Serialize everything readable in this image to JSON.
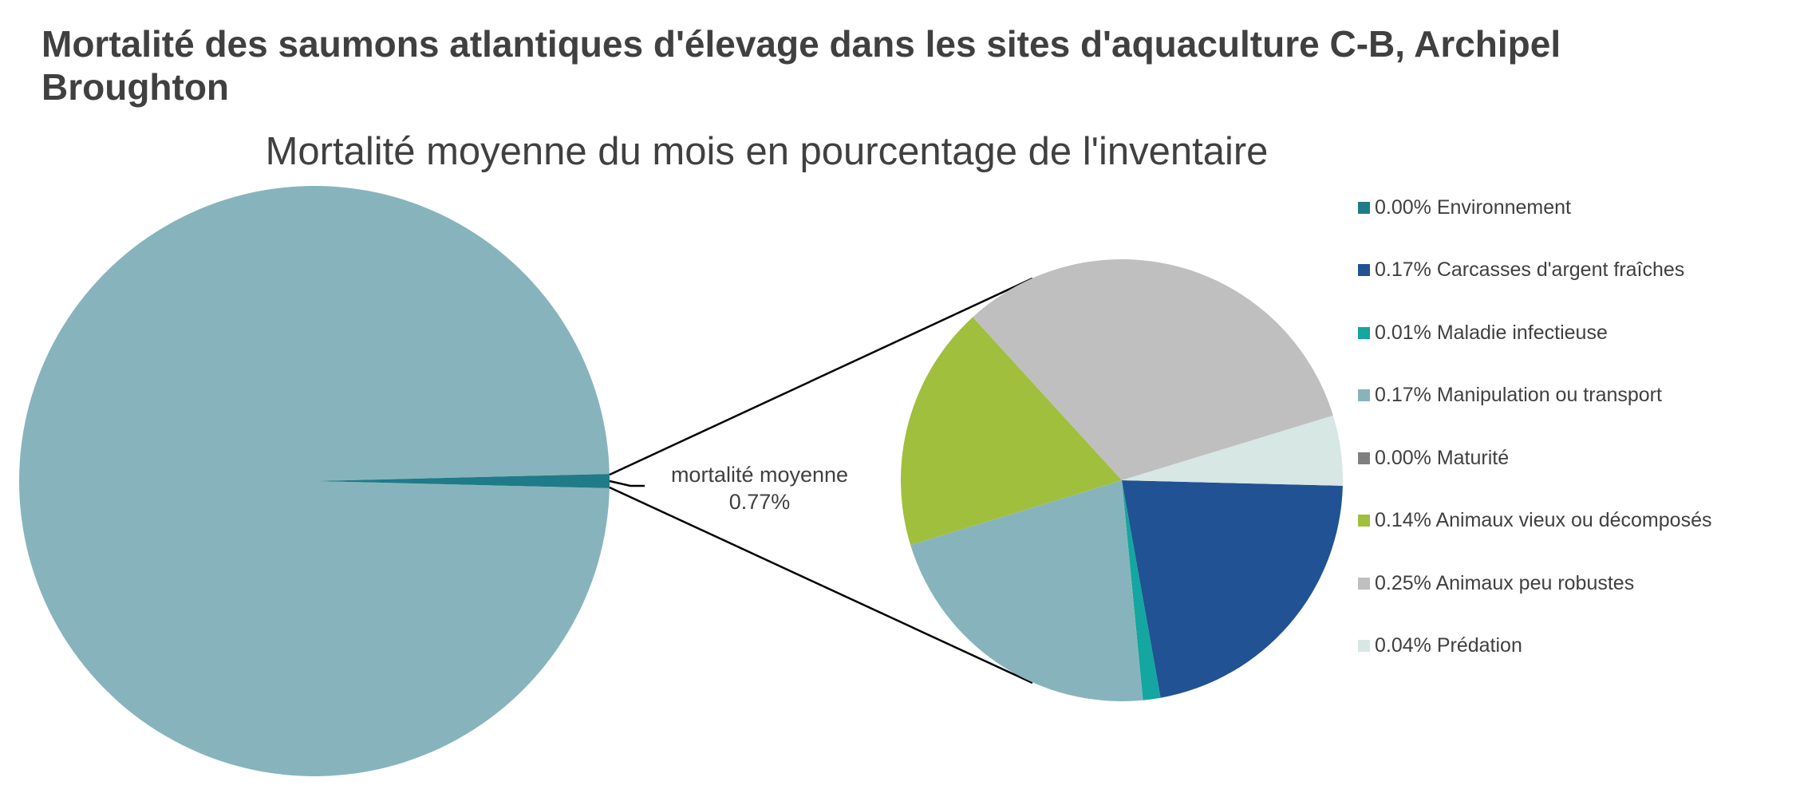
{
  "chart_data": {
    "type": "pie",
    "subtype": "pie-of-pie",
    "title": "Mortalité des saumons atlantiques d'élevage dans les sites d'aquaculture C-B, Archipel Broughton",
    "subtitle": "Mortalité moyenne du mois en pourcentage de l'inventaire",
    "unit": "%",
    "main_pie": {
      "highlight_label": "mortalité moyenne",
      "highlight_value_label": "0.77%",
      "highlight_value": 0.77,
      "highlight_color": "#1f7b88",
      "rest_value": 99.23,
      "rest_color": "#87b4bc"
    },
    "categories": [
      {
        "name": "Environnement",
        "value": 0.0,
        "label": "0.00% Environnement",
        "color": "#1f7b88"
      },
      {
        "name": "Carcasses d'argent fraîches",
        "value": 0.17,
        "label": "0.17% Carcasses d'argent fraîches",
        "color": "#215293"
      },
      {
        "name": "Maladie infectieuse",
        "value": 0.01,
        "label": "0.01% Maladie infectieuse",
        "color": "#14a6a0"
      },
      {
        "name": "Manipulation ou transport",
        "value": 0.17,
        "label": "0.17% Manipulation ou transport",
        "color": "#87b4bc"
      },
      {
        "name": "Maturité",
        "value": 0.0,
        "label": "0.00% Maturité",
        "color": "#7f7f7f"
      },
      {
        "name": "Animaux vieux ou décomposés",
        "value": 0.14,
        "label": "0.14% Animaux vieux ou décomposés",
        "color": "#a0bf3c"
      },
      {
        "name": "Animaux peu robustes",
        "value": 0.25,
        "label": "0.25% Animaux peu robustes",
        "color": "#bfbfbf"
      },
      {
        "name": "Prédation",
        "value": 0.04,
        "label": "0.04% Prédation",
        "color": "#d6e7e4"
      }
    ],
    "legend_position": "right"
  }
}
